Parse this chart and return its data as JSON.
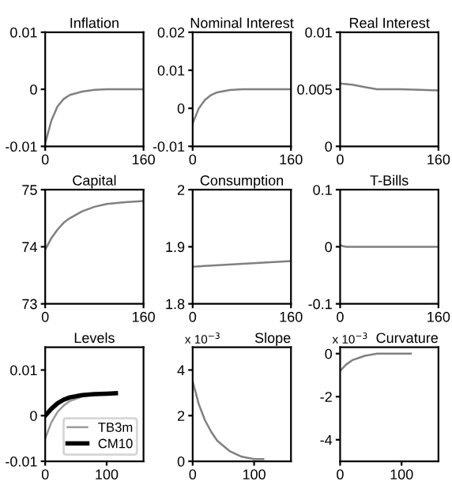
{
  "chart_data": [
    {
      "type": "line",
      "title": "Inflation",
      "x": [
        0,
        10,
        20,
        30,
        40,
        60,
        80,
        100,
        130,
        160
      ],
      "series": [
        {
          "color": "#808080",
          "values": [
            -0.0095,
            -0.0055,
            -0.003,
            -0.0017,
            -0.001,
            -0.0004,
            -0.0001,
            0,
            0,
            0
          ]
        }
      ],
      "xlim": [
        0,
        160
      ],
      "xticks": [
        0,
        160
      ],
      "ylim": [
        -0.01,
        0.01
      ],
      "yticks": [
        -0.01,
        0,
        0.01
      ]
    },
    {
      "type": "line",
      "title": "Nominal Interest",
      "x": [
        0,
        10,
        20,
        30,
        40,
        60,
        80,
        100,
        130,
        160
      ],
      "series": [
        {
          "color": "#808080",
          "values": [
            -0.004,
            0.0,
            0.0022,
            0.0035,
            0.0042,
            0.0048,
            0.005,
            0.005,
            0.005,
            0.005
          ]
        }
      ],
      "xlim": [
        0,
        160
      ],
      "xticks": [
        0,
        160
      ],
      "ylim": [
        -0.01,
        0.02
      ],
      "yticks": [
        -0.01,
        0,
        0.01,
        0.02
      ]
    },
    {
      "type": "line",
      "title": "Real Interest",
      "x": [
        0,
        20,
        40,
        60,
        100,
        160
      ],
      "series": [
        {
          "color": "#808080",
          "values": [
            0.0055,
            0.0054,
            0.0052,
            0.005,
            0.005,
            0.0049
          ]
        }
      ],
      "xlim": [
        0,
        160
      ],
      "xticks": [
        0,
        160
      ],
      "ylim": [
        0,
        0.01
      ],
      "yticks": [
        0,
        0.005,
        0.01
      ]
    },
    {
      "type": "line",
      "title": "Capital",
      "x": [
        0,
        10,
        20,
        30,
        40,
        60,
        80,
        100,
        130,
        160
      ],
      "series": [
        {
          "color": "#808080",
          "values": [
            73.95,
            74.15,
            74.3,
            74.42,
            74.5,
            74.62,
            74.7,
            74.75,
            74.78,
            74.8
          ]
        }
      ],
      "xlim": [
        0,
        160
      ],
      "xticks": [
        0,
        160
      ],
      "ylim": [
        73,
        75
      ],
      "yticks": [
        73,
        74,
        75
      ]
    },
    {
      "type": "line",
      "title": "Consumption",
      "x": [
        0,
        160
      ],
      "series": [
        {
          "color": "#808080",
          "values": [
            1.865,
            1.875
          ]
        }
      ],
      "xlim": [
        0,
        160
      ],
      "xticks": [
        0,
        160
      ],
      "ylim": [
        1.8,
        2
      ],
      "yticks": [
        1.8,
        1.9,
        2
      ]
    },
    {
      "type": "line",
      "title": "T-Bills",
      "x": [
        0,
        5,
        10,
        160
      ],
      "series": [
        {
          "color": "#808080",
          "values": [
            0.003,
            0.001,
            0,
            0
          ]
        }
      ],
      "xlim": [
        0,
        160
      ],
      "xticks": [
        0,
        160
      ],
      "ylim": [
        -0.1,
        0.1
      ],
      "yticks": [
        -0.1,
        0,
        0.1
      ]
    },
    {
      "type": "line",
      "title": "Levels",
      "x": [
        0,
        10,
        20,
        30,
        40,
        60,
        80,
        100,
        115
      ],
      "series": [
        {
          "name": "TB3m",
          "color": "#999999",
          "values": [
            -0.005,
            -0.0015,
            0.0008,
            0.0022,
            0.0032,
            0.0042,
            0.0046,
            0.0048,
            0.0049
          ]
        },
        {
          "name": "CM10",
          "color": "#000000",
          "values": [
            0,
            0.0015,
            0.0027,
            0.0035,
            0.004,
            0.0045,
            0.0047,
            0.0048,
            0.0049
          ]
        }
      ],
      "legend": "bottom right",
      "xlim": [
        0,
        160
      ],
      "xticks": [
        0,
        100
      ],
      "ylim": [
        -0.01,
        0.015
      ],
      "yticks": [
        -0.01,
        0,
        0.01
      ]
    },
    {
      "type": "line",
      "title": "Slope",
      "annotations": [
        "x 10$^{−3}$"
      ],
      "x": [
        0,
        10,
        20,
        30,
        40,
        60,
        80,
        100,
        115
      ],
      "series": [
        {
          "color": "#808080",
          "values": [
            3.5,
            2.5,
            1.8,
            1.3,
            0.9,
            0.45,
            0.2,
            0.1,
            0.1
          ]
        }
      ],
      "xlim": [
        0,
        160
      ],
      "xticks": [
        0,
        100
      ],
      "ylim": [
        0,
        5
      ],
      "yticks": [
        0,
        2,
        4
      ]
    },
    {
      "type": "line",
      "title": "Curvature",
      "annotations": [
        "x 10$^{−3}$"
      ],
      "x": [
        0,
        10,
        20,
        30,
        40,
        60,
        80,
        115
      ],
      "series": [
        {
          "color": "#808080",
          "values": [
            -0.8,
            -0.5,
            -0.3,
            -0.2,
            -0.1,
            0,
            0,
            0
          ]
        }
      ],
      "xlim": [
        0,
        160
      ],
      "xticks": [
        0,
        100
      ],
      "ylim": [
        -5,
        0.3
      ],
      "yticks": [
        -4,
        -2,
        0
      ]
    }
  ]
}
